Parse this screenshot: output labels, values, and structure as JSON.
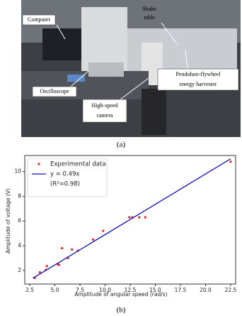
{
  "photo": {
    "caption": "(a)",
    "labels": [
      {
        "lines": [
          "Computer"
        ]
      },
      {
        "lines": [
          "Shake",
          "table"
        ]
      },
      {
        "lines": [
          "Oscilloscope"
        ]
      },
      {
        "lines": [
          "High-speed",
          "camera"
        ]
      },
      {
        "lines": [
          "Pendulum-flywheel",
          "energy harvester"
        ]
      }
    ]
  },
  "chart_data": {
    "type": "scatter",
    "caption": "(b)",
    "x_label": "Amplitude of angular speed (rad/s)",
    "y_label": "Amplitude of voltage (V)",
    "xlim": [
      2.0,
      23.0
    ],
    "ylim": [
      0.9,
      11.3
    ],
    "xticks": [
      {
        "value": 2.5,
        "label": "2.5"
      },
      {
        "value": 5,
        "label": "5.0"
      },
      {
        "value": 7.5,
        "label": "7.5"
      },
      {
        "value": 10,
        "label": "10.0"
      },
      {
        "value": 12.5,
        "label": "12.5"
      },
      {
        "value": 15,
        "label": "15.0"
      },
      {
        "value": 17.5,
        "label": "17.5"
      },
      {
        "value": 20,
        "label": "20.0"
      },
      {
        "value": 22.5,
        "label": "22.5"
      }
    ],
    "yticks": [
      2,
      4,
      6,
      8,
      10
    ],
    "legend": "upper left",
    "series": [
      {
        "name": "Experimental data",
        "type": "scatter",
        "color": "#e8202a",
        "x": [
          3.0,
          3.5,
          4.1,
          4.2,
          5.3,
          5.4,
          5.7,
          6.3,
          6.7,
          7.3,
          8.8,
          9.8,
          12.4,
          12.7,
          13.4,
          14.0,
          22.5
        ],
        "values": [
          1.4,
          1.85,
          2.05,
          2.35,
          2.5,
          2.45,
          3.8,
          3.0,
          3.7,
          3.6,
          4.5,
          5.2,
          6.3,
          6.3,
          6.3,
          6.3,
          10.8
        ]
      },
      {
        "name": "y = 0.49x",
        "note": "(R²=0.98)",
        "type": "line",
        "color": "#1010c0",
        "x": [
          2.8,
          22.5
        ],
        "values": [
          1.37,
          11.03
        ]
      }
    ]
  }
}
